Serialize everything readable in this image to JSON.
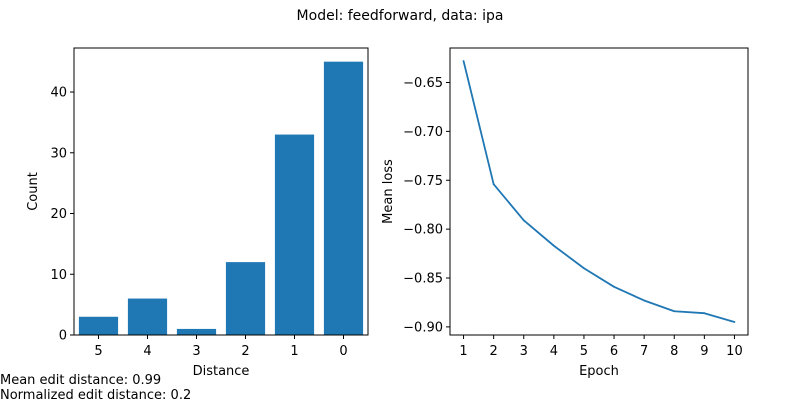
{
  "figure": {
    "title": "Model: feedforward, data: ipa",
    "notes": [
      "Mean edit distance: 0.99",
      "Normalized edit distance: 0.2"
    ]
  },
  "chart_data": [
    {
      "type": "bar",
      "categories": [
        "5",
        "4",
        "3",
        "2",
        "1",
        "0"
      ],
      "values": [
        3,
        6,
        1,
        12,
        33,
        45
      ],
      "xlabel": "Distance",
      "ylabel": "Count",
      "ylim": [
        0,
        47.25
      ],
      "yticks": [
        0,
        10,
        20,
        30,
        40
      ],
      "color": "#1f77b4",
      "grid": false,
      "legend": "none"
    },
    {
      "type": "line",
      "x": [
        1,
        2,
        3,
        4,
        5,
        6,
        7,
        8,
        9,
        10
      ],
      "y": [
        -0.628,
        -0.754,
        -0.791,
        -0.817,
        -0.84,
        -0.859,
        -0.873,
        -0.884,
        -0.886,
        -0.895
      ],
      "xlabel": "Epoch",
      "ylabel": "Mean loss",
      "xlim": [
        0.55,
        10.45
      ],
      "ylim": [
        -0.9083,
        -0.6147
      ],
      "xticks": [
        1,
        2,
        3,
        4,
        5,
        6,
        7,
        8,
        9,
        10
      ],
      "yticks": [
        -0.9,
        -0.85,
        -0.8,
        -0.75,
        -0.7,
        -0.65
      ],
      "ytick_labels": [
        "−0.90",
        "−0.85",
        "−0.80",
        "−0.75",
        "−0.70",
        "−0.65"
      ],
      "color": "#1f77b4",
      "grid": false,
      "legend": "none"
    }
  ]
}
